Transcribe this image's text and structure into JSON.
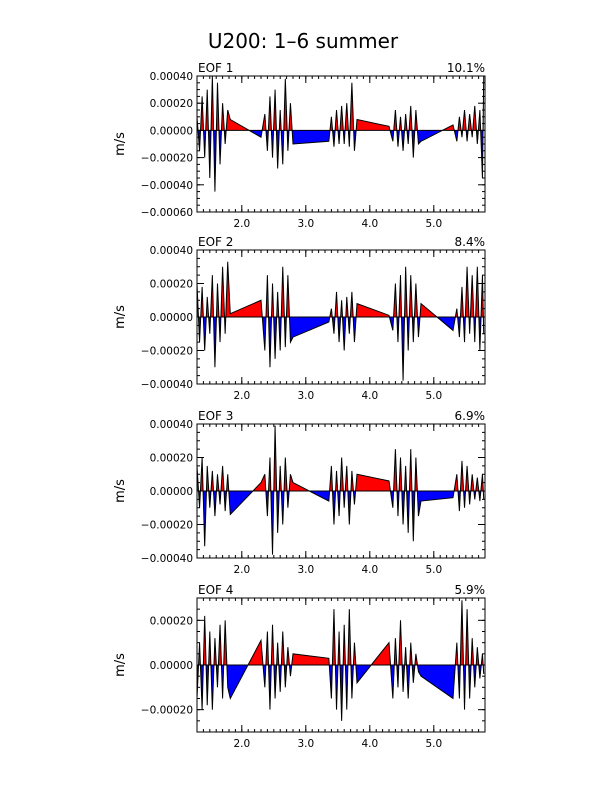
{
  "title": "U200: 1–6 summer",
  "colors": {
    "positive": "#ff0000",
    "negative": "#0000ff",
    "line": "#000000"
  },
  "chart_data": [
    {
      "type": "area",
      "panel_label": "EOF 1",
      "variance": "10.1%",
      "ylabel": "m/s",
      "xlim": [
        1.3,
        5.8
      ],
      "ylim": [
        -0.0006,
        0.0004
      ],
      "yticks": [
        0.0004,
        0.0002,
        0.0,
        -0.0002,
        -0.0004,
        -0.0006
      ],
      "ytick_labels": [
        "0.00040",
        "0.00020",
        "0.00000",
        "−0.00020",
        "−0.00040",
        "−0.00060"
      ],
      "xticks": [
        2.0,
        3.0,
        4.0,
        5.0
      ],
      "xtick_labels": [
        "2.0",
        "3.0",
        "4.0",
        "5.0"
      ],
      "x": [
        1.3,
        1.34,
        1.38,
        1.42,
        1.46,
        1.5,
        1.54,
        1.58,
        1.62,
        1.66,
        1.7,
        1.74,
        1.78,
        1.82,
        2.3,
        2.36,
        2.4,
        2.44,
        2.48,
        2.52,
        2.56,
        2.6,
        2.64,
        2.68,
        2.72,
        2.76,
        2.8,
        3.36,
        3.4,
        3.44,
        3.48,
        3.52,
        3.56,
        3.6,
        3.64,
        3.68,
        3.72,
        3.76,
        3.8,
        4.3,
        4.36,
        4.4,
        4.44,
        4.48,
        4.52,
        4.56,
        4.6,
        4.64,
        4.68,
        4.72,
        4.76,
        4.8,
        5.3,
        5.36,
        5.4,
        5.44,
        5.48,
        5.52,
        5.56,
        5.6,
        5.64,
        5.68,
        5.72,
        5.76,
        5.78
      ],
      "y": [
        0.0001,
        -0.00015,
        0.00025,
        -0.0002,
        0.0003,
        -0.00035,
        0.0004,
        -0.00045,
        0.00035,
        -0.00025,
        0.0002,
        -0.0001,
        0.00015,
        8e-05,
        -5e-05,
        0.00012,
        -0.00015,
        0.00025,
        -0.0002,
        0.0003,
        -0.00028,
        0.00015,
        -0.00025,
        0.00038,
        -0.00015,
        0.0002,
        -0.0001,
        -8e-05,
        0.0001,
        -0.00012,
        0.00015,
        -0.0001,
        0.00018,
        -0.0001,
        0.0002,
        -0.00012,
        0.00035,
        -0.00015,
        8e-05,
        3e-05,
        -8e-05,
        0.00015,
        -0.00012,
        0.0001,
        -0.00015,
        0.00012,
        -0.0001,
        0.00018,
        -0.0002,
        0.00015,
        -0.0001,
        -8e-05,
        4e-05,
        -8e-05,
        0.0001,
        -5e-05,
        0.00015,
        -8e-05,
        0.00012,
        -5e-05,
        0.00018,
        -0.0001,
        0.00015,
        -0.00035,
        0.0004
      ]
    },
    {
      "type": "area",
      "panel_label": "EOF 2",
      "variance": "8.4%",
      "ylabel": "m/s",
      "xlim": [
        1.3,
        5.8
      ],
      "ylim": [
        -0.0004,
        0.0004
      ],
      "yticks": [
        0.0004,
        0.0002,
        0.0,
        -0.0002,
        -0.0004
      ],
      "ytick_labels": [
        "0.00040",
        "0.00020",
        "0.00000",
        "−0.00020",
        "−0.00040"
      ],
      "xticks": [
        2.0,
        3.0,
        4.0,
        5.0
      ],
      "xtick_labels": [
        "2.0",
        "3.0",
        "4.0",
        "5.0"
      ],
      "x": [
        1.3,
        1.34,
        1.38,
        1.42,
        1.46,
        1.5,
        1.54,
        1.58,
        1.62,
        1.66,
        1.7,
        1.74,
        1.78,
        1.82,
        2.3,
        2.36,
        2.4,
        2.44,
        2.48,
        2.52,
        2.56,
        2.6,
        2.64,
        2.68,
        2.72,
        2.76,
        2.8,
        3.36,
        3.4,
        3.44,
        3.48,
        3.52,
        3.56,
        3.6,
        3.64,
        3.68,
        3.72,
        3.76,
        3.8,
        4.3,
        4.36,
        4.4,
        4.44,
        4.48,
        4.52,
        4.56,
        4.6,
        4.64,
        4.68,
        4.72,
        4.76,
        4.8,
        5.3,
        5.36,
        5.4,
        5.44,
        5.48,
        5.52,
        5.56,
        5.6,
        5.64,
        5.68,
        5.72,
        5.76,
        5.78
      ],
      "y": [
        0.0002,
        -0.00015,
        0.00018,
        -0.0002,
        0.00012,
        -0.0001,
        0.00025,
        -0.0003,
        0.0002,
        -0.00015,
        0.0003,
        -0.0001,
        0.00033,
        2e-05,
        0.0001,
        -0.0002,
        0.00025,
        -0.0003,
        0.0002,
        -0.00025,
        0.00015,
        -0.0002,
        0.0003,
        -0.00018,
        0.00025,
        -0.00015,
        -0.00012,
        -3e-05,
        5e-05,
        -0.0001,
        0.00015,
        -0.00015,
        0.0001,
        -0.0002,
        0.00012,
        -0.0001,
        0.00015,
        -0.00015,
        8e-05,
        1e-05,
        -8e-05,
        0.0002,
        -0.00015,
        0.00025,
        -0.00038,
        0.0003,
        -0.0002,
        0.00025,
        -0.00015,
        0.0002,
        -0.00012,
        8e-05,
        -8e-05,
        5e-05,
        -0.00012,
        0.00018,
        -0.00015,
        0.0003,
        -0.0001,
        0.00025,
        -0.00015,
        0.0003,
        -0.0002,
        0.00025,
        -0.0001
      ]
    },
    {
      "type": "area",
      "panel_label": "EOF 3",
      "variance": "6.9%",
      "ylabel": "m/s",
      "xlim": [
        1.3,
        5.8
      ],
      "ylim": [
        -0.0004,
        0.0004
      ],
      "yticks": [
        0.0004,
        0.0002,
        0.0,
        -0.0002,
        -0.0004
      ],
      "ytick_labels": [
        "0.00040",
        "0.00020",
        "0.00000",
        "−0.00020",
        "−0.00040"
      ],
      "xticks": [
        2.0,
        3.0,
        4.0,
        5.0
      ],
      "xtick_labels": [
        "2.0",
        "3.0",
        "4.0",
        "5.0"
      ],
      "x": [
        1.3,
        1.34,
        1.38,
        1.42,
        1.46,
        1.5,
        1.54,
        1.58,
        1.62,
        1.66,
        1.7,
        1.74,
        1.78,
        1.82,
        2.3,
        2.36,
        2.4,
        2.44,
        2.48,
        2.52,
        2.56,
        2.6,
        2.64,
        2.68,
        2.72,
        2.76,
        2.8,
        3.36,
        3.4,
        3.44,
        3.48,
        3.52,
        3.56,
        3.6,
        3.64,
        3.68,
        3.72,
        3.76,
        3.8,
        4.3,
        4.36,
        4.4,
        4.44,
        4.48,
        4.52,
        4.56,
        4.6,
        4.64,
        4.68,
        4.72,
        4.76,
        4.8,
        5.3,
        5.36,
        5.4,
        5.44,
        5.48,
        5.52,
        5.56,
        5.6,
        5.64,
        5.68,
        5.72,
        5.76,
        5.78
      ],
      "y": [
        0.00015,
        -0.0001,
        0.0002,
        -0.00033,
        0.00015,
        -0.0001,
        0.00012,
        -0.00015,
        0.0001,
        -8e-05,
        0.00015,
        -0.00012,
        0.0001,
        -0.00014,
        5e-05,
        0.0001,
        -0.00015,
        0.0002,
        -0.00038,
        0.00039,
        -0.00025,
        0.00015,
        -0.0002,
        0.0002,
        -0.0001,
        0.0001,
        5e-05,
        -6e-05,
        0.00015,
        -0.0002,
        0.00012,
        -0.00015,
        0.0002,
        -0.0001,
        0.00015,
        -0.0002,
        0.00012,
        -8e-05,
        0.0001,
        6e-05,
        -0.0001,
        0.00025,
        -0.00015,
        0.0002,
        -0.0002,
        0.00015,
        -0.00025,
        0.00025,
        -0.0003,
        0.0002,
        -0.00015,
        -6e-05,
        -4e-05,
        0.0001,
        -0.00012,
        0.00018,
        -0.0001,
        0.00015,
        -8e-05,
        0.0001,
        -5e-05,
        8e-05,
        -6e-05,
        0.0001,
        -5e-05
      ]
    },
    {
      "type": "area",
      "panel_label": "EOF 4",
      "variance": "5.9%",
      "ylabel": "m/s",
      "xlim": [
        1.3,
        5.8
      ],
      "ylim": [
        -0.0003,
        0.0003
      ],
      "yticks": [
        0.0002,
        0.0,
        -0.0002
      ],
      "ytick_labels": [
        "0.00020",
        "0.00000",
        "−0.00020"
      ],
      "xticks": [
        2.0,
        3.0,
        4.0,
        5.0
      ],
      "xtick_labels": [
        "2.0",
        "3.0",
        "4.0",
        "5.0"
      ],
      "x": [
        1.3,
        1.34,
        1.38,
        1.42,
        1.46,
        1.5,
        1.54,
        1.58,
        1.62,
        1.66,
        1.7,
        1.74,
        1.78,
        1.82,
        2.3,
        2.36,
        2.4,
        2.44,
        2.48,
        2.52,
        2.56,
        2.6,
        2.64,
        2.68,
        2.72,
        2.76,
        2.8,
        3.36,
        3.4,
        3.44,
        3.48,
        3.52,
        3.56,
        3.6,
        3.64,
        3.68,
        3.72,
        3.76,
        3.8,
        4.3,
        4.36,
        4.4,
        4.44,
        4.48,
        4.52,
        4.56,
        4.6,
        4.64,
        4.68,
        4.72,
        4.76,
        4.8,
        5.3,
        5.36,
        5.4,
        5.44,
        5.48,
        5.52,
        5.56,
        5.6,
        5.64,
        5.68,
        5.72,
        5.76,
        5.78
      ],
      "y": [
        -0.00015,
        0.0001,
        -0.0002,
        0.00022,
        -0.00018,
        0.00015,
        -0.0002,
        0.00012,
        -0.0001,
        0.00018,
        -0.00015,
        0.0002,
        -0.0001,
        -0.00015,
        0.00011,
        -0.0001,
        0.00015,
        -0.0002,
        0.00018,
        -0.00015,
        0.0001,
        -0.00012,
        0.00015,
        -0.0001,
        8e-05,
        -5e-05,
        5e-05,
        3e-05,
        -0.00015,
        0.00025,
        -0.0002,
        0.00015,
        -0.00025,
        0.00018,
        -0.0002,
        0.00025,
        -0.00015,
        0.0001,
        -8e-05,
        0.0001,
        -0.00015,
        0.00012,
        -0.0001,
        0.0002,
        -0.00012,
        8e-05,
        -0.00015,
        0.0001,
        -8e-05,
        5e-05,
        -3e-05,
        -5e-05,
        -0.00015,
        0.0001,
        -0.00015,
        0.00029,
        -0.0002,
        0.00025,
        -0.00015,
        0.00012,
        -0.0001,
        8e-05,
        -6e-05,
        5e-05,
        -4e-05
      ]
    }
  ]
}
